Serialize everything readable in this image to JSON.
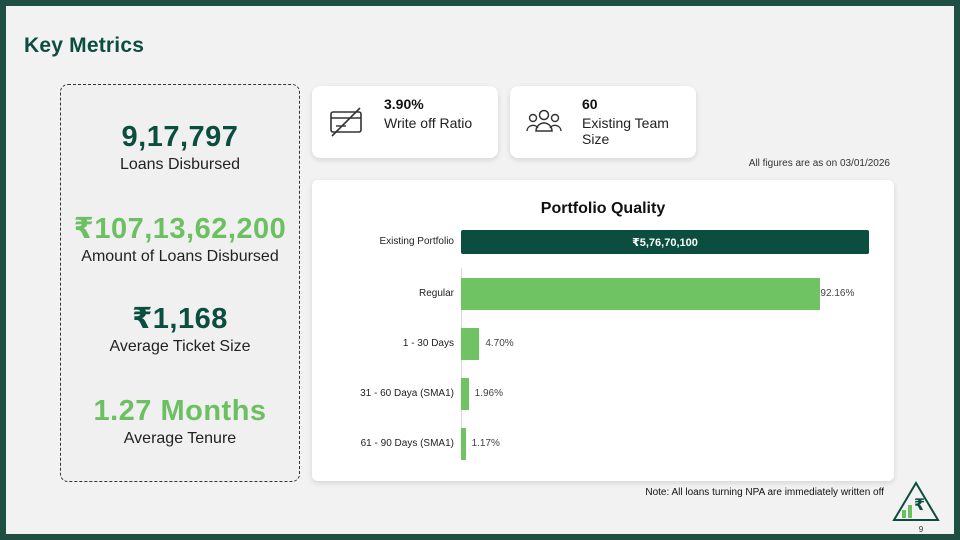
{
  "page": {
    "title": "Key Metrics",
    "page_number": "9"
  },
  "metrics": [
    {
      "value": "9,17,797",
      "label": "Loans Disbursed",
      "color": "#0b4d3f"
    },
    {
      "value": "₹107,13,62,200",
      "label": "Amount of Loans Disbursed",
      "color": "#6cc062"
    },
    {
      "value": "₹1,168",
      "label": "Average Ticket Size",
      "color": "#0b4d3f"
    },
    {
      "value": "1.27 Months",
      "label": "Average Tenure",
      "color": "#6cc062"
    }
  ],
  "cards": [
    {
      "value": "3.90%",
      "label": "Write off Ratio",
      "icon": "write-off-icon"
    },
    {
      "value": "60",
      "label": "Existing Team Size",
      "icon": "team-icon"
    }
  ],
  "as_of": "All figures are as on 03/01/2026",
  "chart_data": {
    "type": "bar",
    "title": "Portfolio Quality",
    "total": {
      "label": "Existing Portfolio",
      "value": "₹5,76,70,100"
    },
    "categories": [
      "Regular",
      "1 - 30 Days",
      "31 - 60 Daya (SMA1)",
      "61 - 90 Days (SMA1)"
    ],
    "values": [
      92.16,
      4.7,
      1.96,
      1.17
    ],
    "value_labels": [
      "92.16%",
      "4.70%",
      "1.96%",
      "1.17%"
    ],
    "xlim": [
      0,
      100
    ],
    "colors": {
      "total_bar": "#0b4d3f",
      "bars": "#6fc363"
    }
  },
  "note": "Note: All loans turning NPA are immediately written off"
}
